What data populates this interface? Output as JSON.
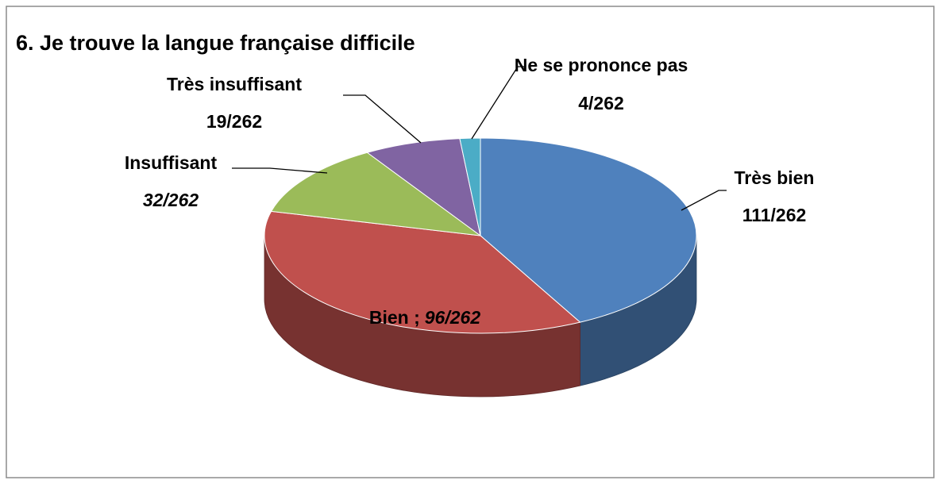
{
  "chart_data": {
    "type": "pie",
    "title": "6. Je trouve la langue française difficile",
    "categories": [
      "Très bien",
      "Bien ;",
      "Insuffisant",
      "Très insuffisant",
      "Ne se prononce pas"
    ],
    "values": [
      111,
      96,
      32,
      19,
      4
    ],
    "value_labels": [
      "111/262",
      "96/262",
      "32/262",
      "19/262",
      "4/262"
    ],
    "colors": [
      "#4f81bd",
      "#c0504d",
      "#9bbb59",
      "#8064a2",
      "#4bacc6"
    ]
  }
}
